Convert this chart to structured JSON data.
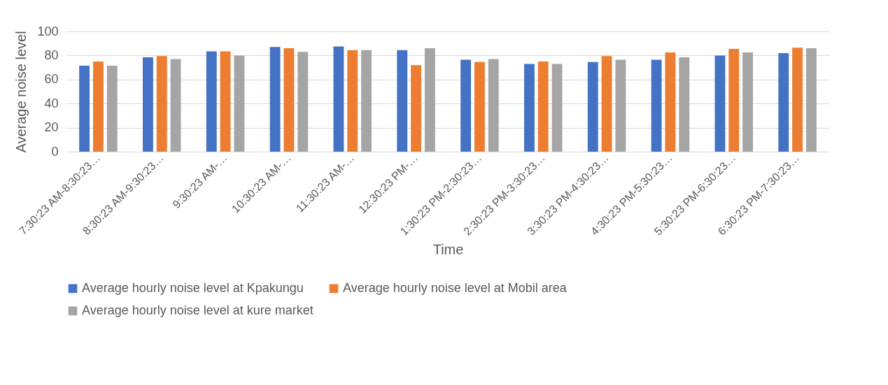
{
  "chart_data": {
    "type": "bar",
    "xlabel": "Time",
    "ylabel": "Average noise level",
    "categories": [
      "7:30:23 AM-8:30:23…",
      "8:30:23 AM-9:30:23…",
      "9:30:23 AM-…",
      "10:30:23 AM-…",
      "11:30:23 AM-…",
      "12:30:23 PM-…",
      "1:30:23 PM-2:30:23…",
      "2:30:23 PM-3:30:23…",
      "3:30:23 PM-4:30:23…",
      "4:30:23 PM-5:30:23…",
      "5:30:23 PM-6:30:23…",
      "6:30:23 PM-7:30:23…"
    ],
    "series": [
      {
        "name": "Average hourly noise level at Kpakungu",
        "color": "#4472c4",
        "values": [
          71.5,
          78.5,
          83.5,
          87,
          87.5,
          84.5,
          76.5,
          73,
          74.5,
          76.5,
          80,
          82
        ]
      },
      {
        "name": "Average hourly noise level at Mobil area",
        "color": "#ed7d31",
        "values": [
          75,
          79.5,
          83.5,
          86,
          84.5,
          72,
          74.5,
          75,
          79.5,
          82.5,
          85.5,
          86.5
        ]
      },
      {
        "name": "Average hourly noise level at kure market",
        "color": "#a5a5a5",
        "values": [
          71.5,
          77,
          80,
          83,
          84.5,
          86,
          77,
          73,
          76.5,
          78.5,
          82.5,
          86
        ]
      }
    ],
    "ylim": [
      0,
      100
    ],
    "yticks": [
      0,
      20,
      40,
      60,
      80,
      100
    ],
    "grid": "y",
    "legend": "bottom"
  }
}
